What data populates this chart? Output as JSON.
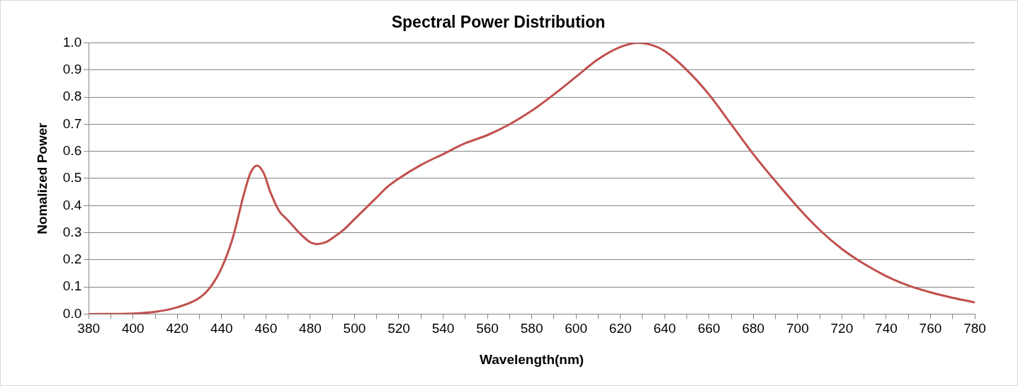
{
  "chart_data": {
    "type": "line",
    "title": "Spectral Power Distribution",
    "xlabel": "Wavelength(nm)",
    "ylabel": "Nomalized Power",
    "x": [
      380,
      400,
      410,
      420,
      430,
      435,
      440,
      445,
      450,
      453,
      456,
      459,
      462,
      466,
      470,
      475,
      480,
      483,
      487,
      490,
      495,
      500,
      505,
      510,
      515,
      520,
      530,
      540,
      550,
      560,
      570,
      580,
      590,
      600,
      610,
      620,
      628,
      635,
      640,
      650,
      660,
      670,
      680,
      690,
      700,
      710,
      720,
      730,
      740,
      750,
      760,
      770,
      780
    ],
    "series": [
      {
        "color": "#c0504d",
        "values": [
          0,
          0.002,
          0.008,
          0.025,
          0.06,
          0.1,
          0.17,
          0.28,
          0.44,
          0.52,
          0.548,
          0.52,
          0.45,
          0.38,
          0.345,
          0.3,
          0.265,
          0.258,
          0.265,
          0.28,
          0.31,
          0.35,
          0.39,
          0.43,
          0.47,
          0.5,
          0.55,
          0.59,
          0.63,
          0.66,
          0.7,
          0.75,
          0.81,
          0.875,
          0.94,
          0.985,
          1.0,
          0.99,
          0.97,
          0.9,
          0.81,
          0.7,
          0.59,
          0.49,
          0.395,
          0.31,
          0.24,
          0.185,
          0.14,
          0.105,
          0.08,
          0.06,
          0.043
        ]
      }
    ],
    "xlim": [
      380,
      780
    ],
    "xticks": [
      380,
      {
        "value": 390,
        "label": null
      },
      400,
      {
        "value": 410,
        "label": null
      },
      420,
      {
        "value": 430,
        "label": null
      },
      440,
      {
        "value": 450,
        "label": null
      },
      460,
      {
        "value": 470,
        "label": null
      },
      480,
      {
        "value": 490,
        "label": null
      },
      500,
      {
        "value": 510,
        "label": null
      },
      520,
      {
        "value": 530,
        "label": null
      },
      540,
      {
        "value": 550,
        "label": null
      },
      560,
      {
        "value": 570,
        "label": null
      },
      580,
      {
        "value": 590,
        "label": null
      },
      600,
      {
        "value": 610,
        "label": null
      },
      620,
      {
        "value": 630,
        "label": null
      },
      640,
      {
        "value": 650,
        "label": null
      },
      660,
      {
        "value": 670,
        "label": null
      },
      680,
      {
        "value": 690,
        "label": null
      },
      700,
      {
        "value": 710,
        "label": null
      },
      720,
      {
        "value": 730,
        "label": null
      },
      740,
      {
        "value": 750,
        "label": null
      },
      760,
      {
        "value": 770,
        "label": null
      },
      780
    ],
    "ylim": [
      0,
      1.0
    ],
    "yticks": [
      {
        "value": 0,
        "label": "0.0"
      },
      0.1,
      0.2,
      0.3,
      0.4,
      0.5,
      0.6,
      0.7,
      0.8,
      0.9,
      {
        "value": 1,
        "label": "1.0"
      }
    ],
    "grid": "y",
    "legend": false,
    "marker": "none",
    "line_style": "solid"
  }
}
